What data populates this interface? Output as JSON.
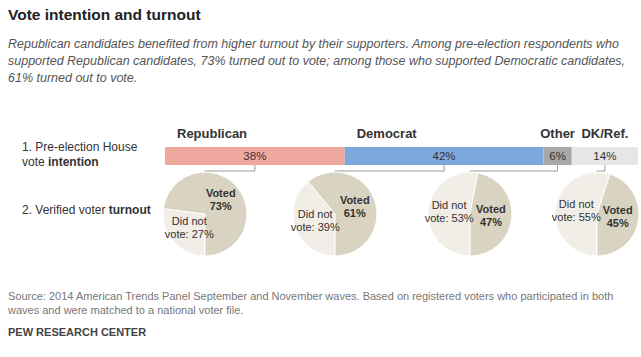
{
  "title": "Vote intention and turnout",
  "subtitle": "Republican candidates benefited from higher turnout by their supporters. Among pre-election respondents who supported Republican candidates, 73% turned out to vote; among those who supported Democratic candidates, 61% turned out to vote.",
  "source": "Source: 2014 American Trends Panel September and November waves. Based on registered voters who participated in both waves and were matched to a national voter file.",
  "credit": "PEW RESEARCH CENTER",
  "chart_data": [
    {
      "type": "bar",
      "orientation": "horizontal",
      "stacked": true,
      "data_labels": true,
      "tick_labels": false,
      "categories": [
        "1. Pre-election House vote intention"
      ],
      "xlim": [
        0,
        100
      ],
      "series": [
        {
          "name": "Republican",
          "color": "#f0a99e",
          "values": [
            38
          ],
          "value_labels": [
            "38%"
          ]
        },
        {
          "name": "Democrat",
          "color": "#7ea8dc",
          "values": [
            42
          ],
          "value_labels": [
            "42%"
          ]
        },
        {
          "name": "Other",
          "color": "#a8a8a8",
          "values": [
            6
          ],
          "value_labels": [
            "6%"
          ]
        },
        {
          "name": "DK/Ref.",
          "color": "#e6e6e6",
          "values": [
            14
          ],
          "value_labels": [
            "14%"
          ]
        }
      ]
    },
    {
      "type": "pie",
      "data_labels": true,
      "title": "2. Verified voter turnout",
      "categories": [
        "Voted",
        "Did not vote:"
      ],
      "colors": [
        "#d9d4c1",
        "#f0eee6"
      ],
      "series": [
        {
          "values": [
            73,
            27
          ],
          "value_labels": [
            "73%",
            "27%"
          ]
        },
        {
          "values": [
            61,
            39
          ],
          "value_labels": [
            "61%",
            "39%"
          ]
        },
        {
          "values": [
            47,
            53
          ],
          "value_labels": [
            "47%",
            "53%"
          ]
        },
        {
          "values": [
            45,
            55
          ],
          "value_labels": [
            "45%",
            "55%"
          ]
        }
      ]
    }
  ]
}
